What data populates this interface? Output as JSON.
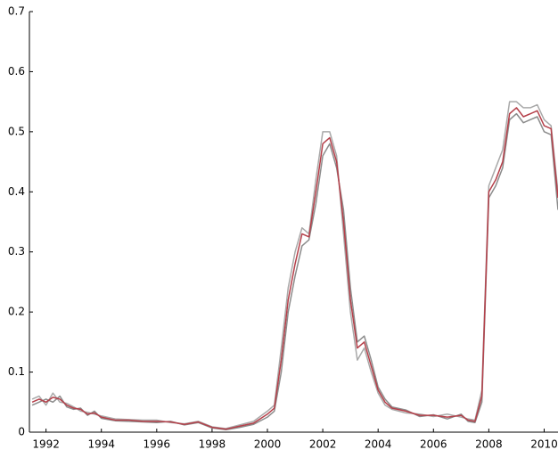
{
  "chart_data": {
    "type": "line",
    "x": [
      1991.5,
      1991.75,
      1992,
      1992.25,
      1992.5,
      1992.75,
      1993,
      1993.25,
      1993.5,
      1993.75,
      1994,
      1994.5,
      1995,
      1995.5,
      1996,
      1996.5,
      1997,
      1997.5,
      1998,
      1998.5,
      1999,
      1999.5,
      2000,
      2000.25,
      2000.5,
      2000.75,
      2001,
      2001.25,
      2001.5,
      2001.75,
      2002,
      2002.25,
      2002.5,
      2002.75,
      2003,
      2003.25,
      2003.5,
      2003.75,
      2004,
      2004.25,
      2004.5,
      2005,
      2005.5,
      2006,
      2006.5,
      2007,
      2007.25,
      2007.5,
      2007.75,
      2008,
      2008.25,
      2008.5,
      2008.75,
      2009,
      2009.25,
      2009.5,
      2009.75,
      2010,
      2010.25,
      2010.5
    ],
    "series": [
      {
        "color": "#a9a9a9",
        "values": [
          0.055,
          0.06,
          0.045,
          0.065,
          0.05,
          0.048,
          0.042,
          0.035,
          0.033,
          0.03,
          0.027,
          0.022,
          0.021,
          0.02,
          0.02,
          0.016,
          0.014,
          0.018,
          0.009,
          0.006,
          0.012,
          0.018,
          0.035,
          0.045,
          0.14,
          0.24,
          0.3,
          0.34,
          0.33,
          0.42,
          0.5,
          0.5,
          0.46,
          0.33,
          0.2,
          0.12,
          0.14,
          0.1,
          0.065,
          0.045,
          0.038,
          0.032,
          0.03,
          0.026,
          0.03,
          0.025,
          0.022,
          0.02,
          0.07,
          0.41,
          0.44,
          0.47,
          0.55,
          0.55,
          0.54,
          0.54,
          0.545,
          0.52,
          0.51,
          0.4
        ]
      },
      {
        "color": "#8c8c8c",
        "values": [
          0.045,
          0.05,
          0.055,
          0.05,
          0.06,
          0.042,
          0.038,
          0.04,
          0.028,
          0.035,
          0.023,
          0.019,
          0.018,
          0.017,
          0.016,
          0.018,
          0.012,
          0.016,
          0.007,
          0.004,
          0.008,
          0.013,
          0.025,
          0.035,
          0.1,
          0.2,
          0.26,
          0.31,
          0.32,
          0.38,
          0.46,
          0.48,
          0.44,
          0.37,
          0.24,
          0.15,
          0.16,
          0.12,
          0.075,
          0.055,
          0.042,
          0.037,
          0.026,
          0.029,
          0.022,
          0.03,
          0.018,
          0.016,
          0.05,
          0.39,
          0.41,
          0.44,
          0.52,
          0.53,
          0.515,
          0.52,
          0.525,
          0.5,
          0.495,
          0.37
        ]
      },
      {
        "color": "#b5404a",
        "values": [
          0.05,
          0.055,
          0.05,
          0.058,
          0.055,
          0.045,
          0.04,
          0.038,
          0.03,
          0.032,
          0.025,
          0.02,
          0.02,
          0.018,
          0.018,
          0.017,
          0.013,
          0.017,
          0.008,
          0.005,
          0.01,
          0.015,
          0.03,
          0.04,
          0.12,
          0.22,
          0.28,
          0.33,
          0.325,
          0.4,
          0.48,
          0.49,
          0.45,
          0.35,
          0.22,
          0.14,
          0.15,
          0.11,
          0.07,
          0.05,
          0.04,
          0.035,
          0.028,
          0.028,
          0.025,
          0.028,
          0.02,
          0.018,
          0.06,
          0.4,
          0.42,
          0.45,
          0.53,
          0.54,
          0.525,
          0.53,
          0.535,
          0.51,
          0.505,
          0.39
        ]
      }
    ],
    "xlim": [
      1991.4,
      2010.5
    ],
    "xticks": [
      1992,
      1994,
      1996,
      1998,
      2000,
      2002,
      2004,
      2006,
      2008,
      2010
    ],
    "ylim": [
      0,
      0.7
    ],
    "yticks": [
      0,
      0.1,
      0.2,
      0.3,
      0.4,
      0.5,
      0.6,
      0.7
    ]
  }
}
